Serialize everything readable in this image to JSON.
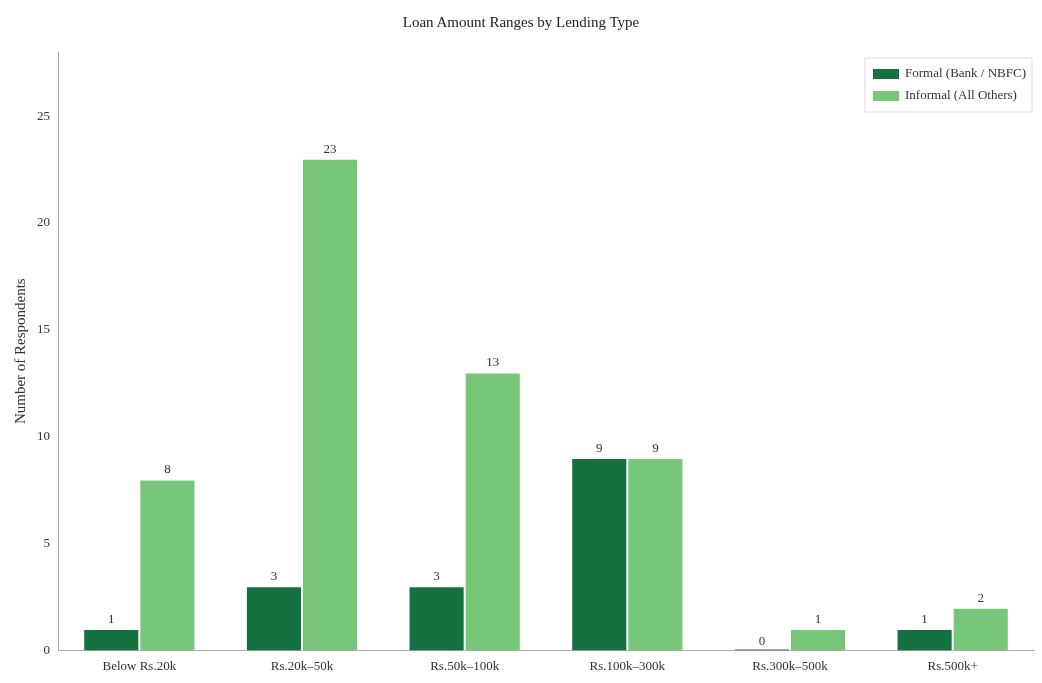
{
  "chart_data": {
    "type": "bar",
    "title": "Loan Amount Ranges by Lending Type",
    "ylabel": "Number of Respondents",
    "categories": [
      "Below Rs.20k",
      "Rs.20k–50k",
      "Rs.50k–100k",
      "Rs.100k–300k",
      "Rs.300k–500k",
      "Rs.500k+"
    ],
    "series": [
      {
        "name": "Formal (Bank / NBFC)",
        "color": "#137240",
        "values": [
          1,
          3,
          3,
          9,
          0,
          1
        ]
      },
      {
        "name": "Informal (All Others)",
        "color": "#78c679",
        "values": [
          8,
          23,
          13,
          9,
          1,
          2
        ]
      }
    ],
    "ylim": [
      0,
      28
    ],
    "yticks": [
      0,
      5,
      10,
      15,
      20,
      25
    ],
    "grid": false,
    "legend": "top right",
    "data_labels": true
  }
}
